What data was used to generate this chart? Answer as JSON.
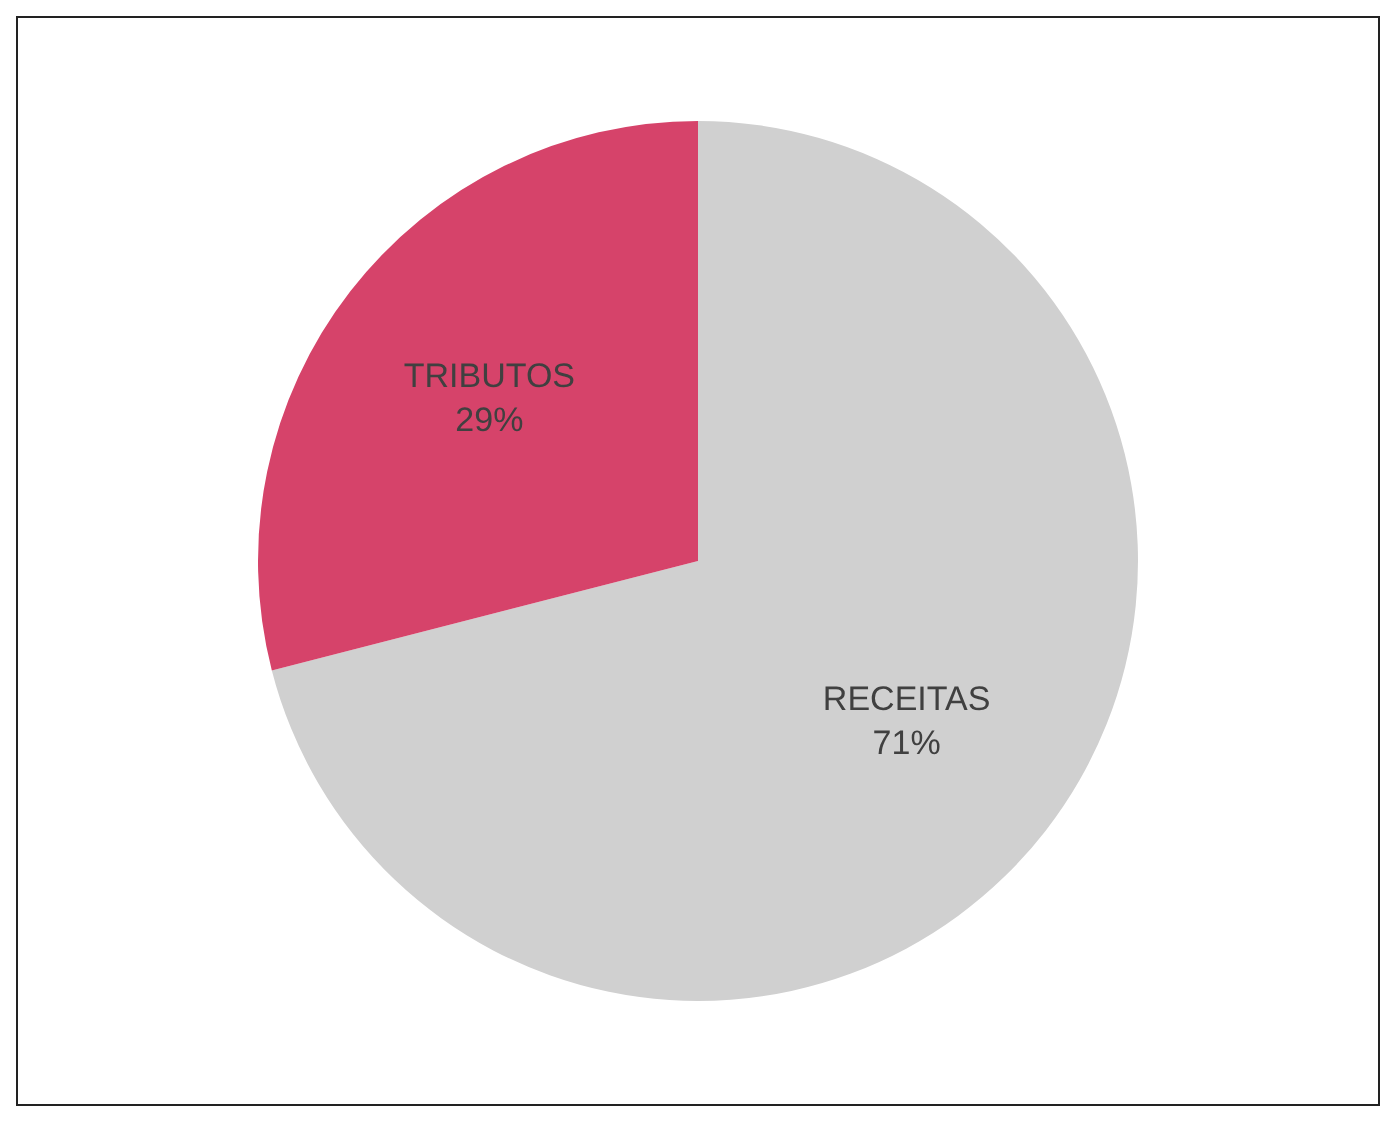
{
  "chart_data": {
    "type": "pie",
    "categories": [
      "RECEITAS",
      "TRIBUTOS"
    ],
    "values": [
      71,
      29
    ],
    "colors": [
      "#d0d0d0",
      "#d6436a"
    ],
    "value_labels": [
      "71%",
      "29%"
    ]
  }
}
